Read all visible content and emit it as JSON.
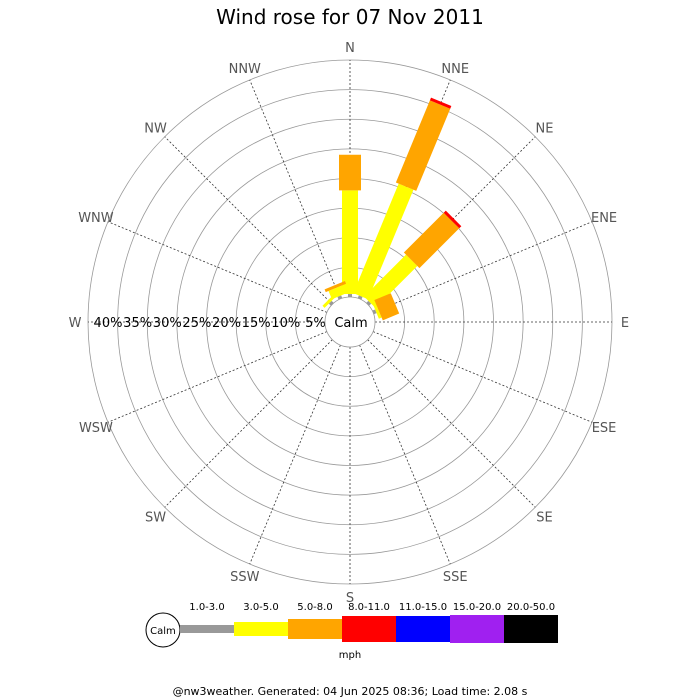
{
  "chart_data": {
    "type": "wind_rose",
    "title": "Wind rose for 07 Nov 2011",
    "directions": [
      "N",
      "NNE",
      "NE",
      "ENE",
      "E",
      "ESE",
      "SE",
      "SSE",
      "S",
      "SSW",
      "SW",
      "WSW",
      "W",
      "WNW",
      "NW",
      "NNW"
    ],
    "radial_labels": [
      "40%",
      "35%",
      "30%",
      "25%",
      "20%",
      "15%",
      "10%",
      "5%"
    ],
    "radial_max": 40,
    "calm_label": "Calm",
    "speed_bins": [
      {
        "range": "1.0-3.0",
        "color": "#999999"
      },
      {
        "range": "3.0-5.0",
        "color": "#ffff00"
      },
      {
        "range": "5.0-8.0",
        "color": "#ffa500"
      },
      {
        "range": "8.0-11.0",
        "color": "#ff0000"
      },
      {
        "range": "11.0-15.0",
        "color": "#0000ff"
      },
      {
        "range": "15.0-20.0",
        "color": "#a020f0"
      },
      {
        "range": "20.0-50.0",
        "color": "#000000"
      }
    ],
    "units": "mph",
    "series": [
      {
        "direction": "N",
        "values": [
          0.5,
          17.5,
          6.0,
          0,
          0,
          0,
          0
        ]
      },
      {
        "direction": "NNE",
        "values": [
          0.5,
          20.0,
          15.0,
          0.5,
          0,
          0,
          0
        ]
      },
      {
        "direction": "NE",
        "values": [
          0.5,
          10.0,
          9.5,
          0.5,
          0,
          0,
          0
        ]
      },
      {
        "direction": "ENE",
        "values": [
          0.5,
          0.5,
          3.0,
          0,
          0,
          0,
          0
        ]
      },
      {
        "direction": "NNW",
        "values": [
          0.5,
          1.5,
          0.5,
          0,
          0,
          0,
          0
        ]
      },
      {
        "direction": "NW",
        "values": [
          0.5,
          0.5,
          0,
          0,
          0,
          0,
          0
        ]
      }
    ]
  },
  "footer": "@nw3weather. Generated: 04 Jun 2025 08:36; Load time: 2.08 s"
}
